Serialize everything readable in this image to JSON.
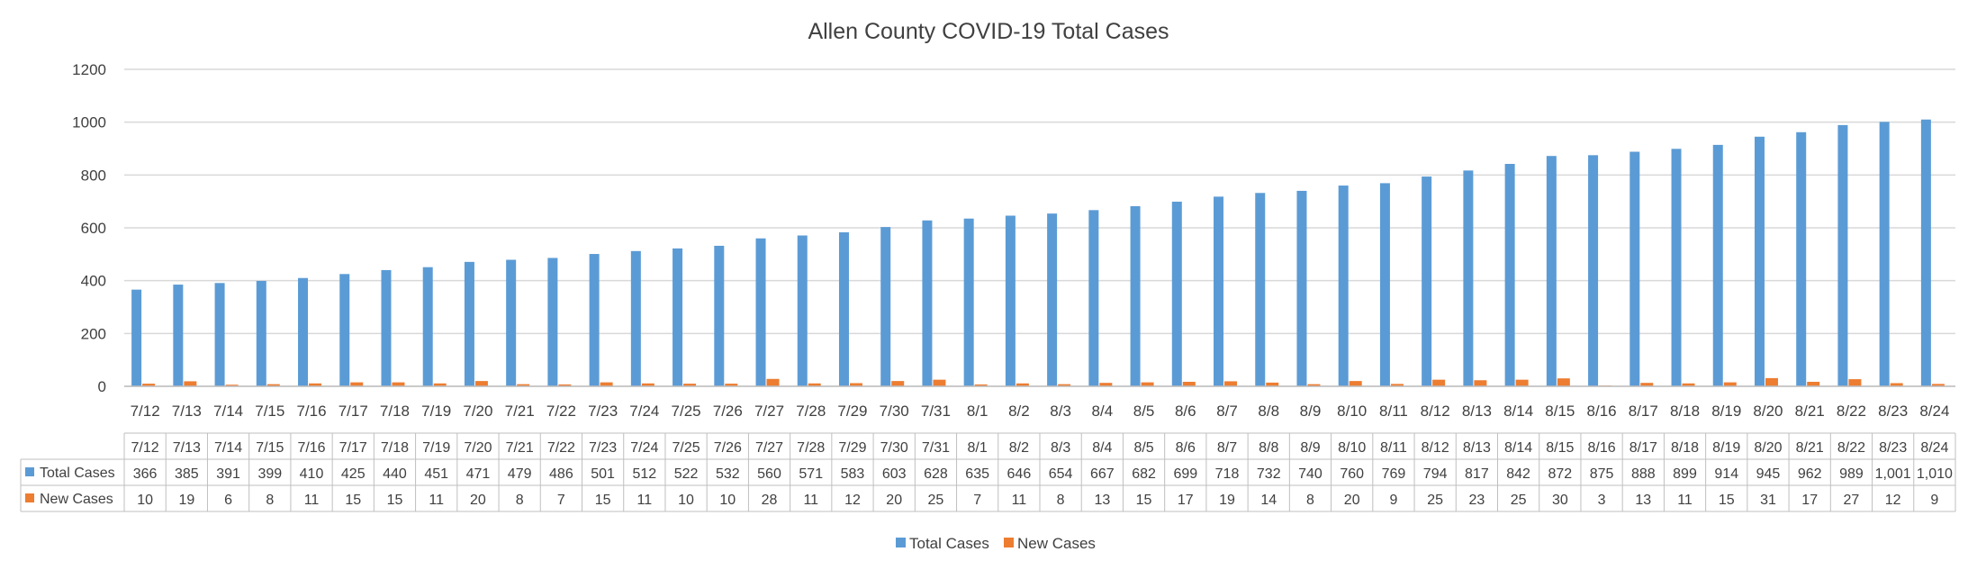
{
  "chart_data": {
    "type": "bar",
    "title": "Allen County COVID-19 Total Cases",
    "xlabel": "",
    "ylabel": "",
    "ylim": [
      0,
      1200
    ],
    "yticks": [
      0,
      200,
      400,
      600,
      800,
      1000,
      1200
    ],
    "grid": true,
    "legend_position": "bottom",
    "data_table": true,
    "categories": [
      "7/12",
      "7/13",
      "7/14",
      "7/15",
      "7/16",
      "7/17",
      "7/18",
      "7/19",
      "7/20",
      "7/21",
      "7/22",
      "7/23",
      "7/24",
      "7/25",
      "7/26",
      "7/27",
      "7/28",
      "7/29",
      "7/30",
      "7/31",
      "8/1",
      "8/2",
      "8/3",
      "8/4",
      "8/5",
      "8/6",
      "8/7",
      "8/8",
      "8/9",
      "8/10",
      "8/11",
      "8/12",
      "8/13",
      "8/14",
      "8/15",
      "8/16",
      "8/17",
      "8/18",
      "8/19",
      "8/20",
      "8/21",
      "8/22",
      "8/23",
      "8/24"
    ],
    "series": [
      {
        "name": "Total Cases",
        "color": "#5B9BD5",
        "values": [
          366,
          385,
          391,
          399,
          410,
          425,
          440,
          451,
          471,
          479,
          486,
          501,
          512,
          522,
          532,
          560,
          571,
          583,
          603,
          628,
          635,
          646,
          654,
          667,
          682,
          699,
          718,
          732,
          740,
          760,
          769,
          794,
          817,
          842,
          872,
          875,
          888,
          899,
          914,
          945,
          962,
          989,
          1001,
          1010
        ],
        "labels": [
          "366",
          "385",
          "391",
          "399",
          "410",
          "425",
          "440",
          "451",
          "471",
          "479",
          "486",
          "501",
          "512",
          "522",
          "532",
          "560",
          "571",
          "583",
          "603",
          "628",
          "635",
          "646",
          "654",
          "667",
          "682",
          "699",
          "718",
          "732",
          "740",
          "760",
          "769",
          "794",
          "817",
          "842",
          "872",
          "875",
          "888",
          "899",
          "914",
          "945",
          "962",
          "989",
          "1,001",
          "1,010"
        ]
      },
      {
        "name": "New Cases",
        "color": "#ED7D31",
        "values": [
          10,
          19,
          6,
          8,
          11,
          15,
          15,
          11,
          20,
          8,
          7,
          15,
          11,
          10,
          10,
          28,
          11,
          12,
          20,
          25,
          7,
          11,
          8,
          13,
          15,
          17,
          19,
          14,
          8,
          20,
          9,
          25,
          23,
          25,
          30,
          3,
          13,
          11,
          15,
          31,
          17,
          27,
          12,
          9
        ],
        "labels": [
          "10",
          "19",
          "6",
          "8",
          "11",
          "15",
          "15",
          "11",
          "20",
          "8",
          "7",
          "15",
          "11",
          "10",
          "10",
          "28",
          "11",
          "12",
          "20",
          "25",
          "7",
          "11",
          "8",
          "13",
          "15",
          "17",
          "19",
          "14",
          "8",
          "20",
          "9",
          "25",
          "23",
          "25",
          "30",
          "3",
          "13",
          "11",
          "15",
          "31",
          "17",
          "27",
          "12",
          "9"
        ]
      }
    ]
  }
}
